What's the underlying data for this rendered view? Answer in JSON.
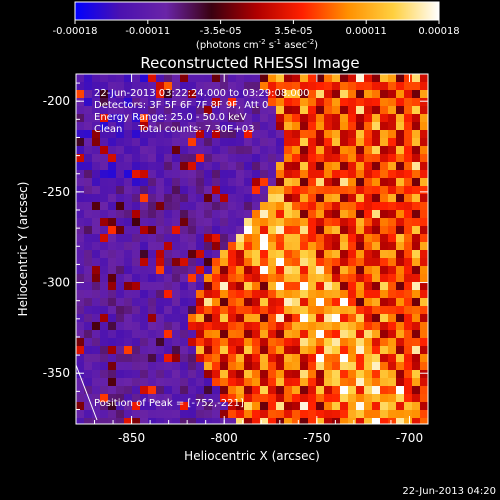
{
  "chart_data": {
    "type": "heatmap",
    "title": "Reconstructed RHESSI Image",
    "xlabel": "Heliocentric X (arcsec)",
    "ylabel": "Heliocentric Y (arcsec)",
    "xlim": [
      -880,
      -690
    ],
    "ylim": [
      -378,
      -185
    ],
    "xticks": [
      -850,
      -800,
      -750,
      -700
    ],
    "yticks": [
      -200,
      -250,
      -300,
      -350
    ],
    "colorbar": {
      "ticks": [
        "-0.00018",
        "-0.00011",
        "-3.5e-05",
        "3.5e-05",
        "0.00011",
        "0.00018"
      ],
      "label_parts": [
        "(photons cm",
        "-2",
        " s",
        "-1",
        " asec",
        "-2",
        ")"
      ],
      "min": -0.00018,
      "max": 0.00018,
      "colors": [
        "#0000ff",
        "#4b12b0",
        "#6a24a8",
        "#3a0010",
        "#b00000",
        "#ff2000",
        "#ff9000",
        "#ffd040",
        "#ffffff"
      ]
    },
    "annotations": [
      "22-Jun-2013 03:22:24.000 to 03:29:08.000",
      "Detectors: 3F 5F 6F 7F 8F 9F, Att 0",
      "Energy Range: 25.0 - 50.0 keV",
      "Clean     Total counts: 7.30E+03"
    ],
    "peak_label": "Position of Peak = [-752,-221]",
    "peak_position": [
      -752,
      -221
    ],
    "timestamp": "22-Jun-2013 04:20",
    "grid": false
  }
}
